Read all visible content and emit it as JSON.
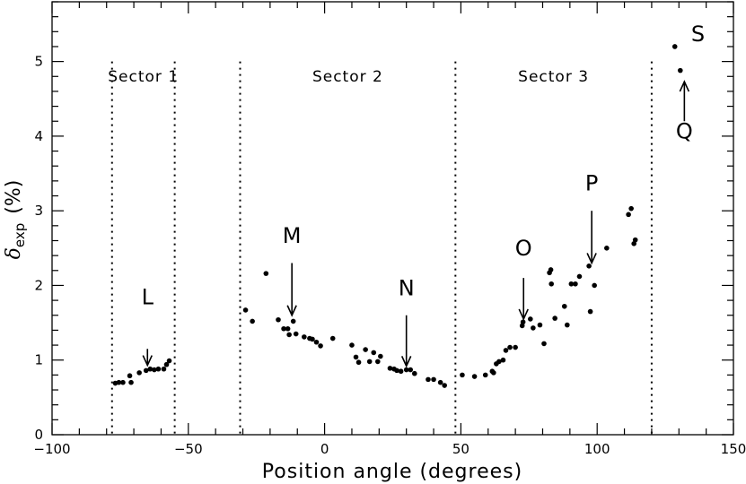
{
  "chart_data": {
    "type": "scatter",
    "xlabel": "Position angle (degrees)",
    "ylabel": "δ",
    "ylabel_sub": "exp",
    "ylabel_unit": "(%)",
    "xlim": [
      -100,
      150
    ],
    "ylim": [
      0,
      5.8
    ],
    "x_ticks": [
      -100,
      -50,
      0,
      50,
      100,
      150
    ],
    "x_tick_labels": [
      "−100",
      "−50",
      "0",
      "50",
      "100",
      "150"
    ],
    "y_ticks": [
      0,
      1,
      2,
      3,
      4,
      5
    ],
    "y_tick_labels": [
      "0",
      "1",
      "2",
      "3",
      "4",
      "5"
    ],
    "grid": false,
    "sectors": [
      {
        "label": "Sector 1",
        "from": -78,
        "to": -55
      },
      {
        "label": "Sector 2",
        "from": -31,
        "to": 48
      },
      {
        "label": "Sector 3",
        "from": 48,
        "to": 120
      }
    ],
    "sector_boundaries": [
      -78,
      -55,
      -31,
      48,
      120
    ],
    "annotations": [
      {
        "label": "L",
        "x": -65,
        "y_label": 1.75,
        "arrow_from": 1.15,
        "arrow_to": 0.93,
        "direction": "down"
      },
      {
        "label": "M",
        "x": -12,
        "y_label": 2.57,
        "arrow_from": 2.3,
        "arrow_to": 1.6,
        "direction": "down"
      },
      {
        "label": "N",
        "x": 30,
        "y_label": 1.87,
        "arrow_from": 1.6,
        "arrow_to": 0.92,
        "direction": "down"
      },
      {
        "label": "O",
        "x": 73,
        "y_label": 2.4,
        "arrow_from": 2.1,
        "arrow_to": 1.55,
        "direction": "down"
      },
      {
        "label": "P",
        "x": 98,
        "y_label": 3.27,
        "arrow_from": 3.0,
        "arrow_to": 2.3,
        "direction": "down"
      },
      {
        "label": "Q",
        "x": 132,
        "y_label": 3.97,
        "arrow_from": 4.2,
        "arrow_to": 4.73,
        "direction": "up"
      },
      {
        "label": "S",
        "x": 137,
        "y_label": 5.27,
        "direction": "none"
      }
    ],
    "series": [
      {
        "points": [
          [
            -76.8,
            0.69
          ],
          [
            -75.5,
            0.7
          ],
          [
            -74.0,
            0.7
          ],
          [
            -71.5,
            0.79
          ],
          [
            -71.0,
            0.7
          ],
          [
            -68.0,
            0.83
          ],
          [
            -65.5,
            0.86
          ],
          [
            -64.0,
            0.88
          ],
          [
            -62.5,
            0.87
          ],
          [
            -61.0,
            0.88
          ],
          [
            -59.0,
            0.88
          ],
          [
            -58.0,
            0.94
          ],
          [
            -57.0,
            0.99
          ],
          [
            -29.0,
            1.67
          ],
          [
            -26.5,
            1.52
          ],
          [
            -21.5,
            2.16
          ],
          [
            -17.0,
            1.54
          ],
          [
            -15.0,
            1.42
          ],
          [
            -13.5,
            1.42
          ],
          [
            -13.0,
            1.34
          ],
          [
            -11.5,
            1.52
          ],
          [
            -10.5,
            1.35
          ],
          [
            -7.5,
            1.31
          ],
          [
            -5.5,
            1.29
          ],
          [
            -4.5,
            1.28
          ],
          [
            -3.0,
            1.24
          ],
          [
            -1.5,
            1.19
          ],
          [
            3.0,
            1.29
          ],
          [
            10.0,
            1.2
          ],
          [
            11.5,
            1.04
          ],
          [
            12.5,
            0.97
          ],
          [
            15.0,
            1.14
          ],
          [
            16.5,
            0.98
          ],
          [
            18.0,
            1.1
          ],
          [
            19.5,
            0.98
          ],
          [
            20.5,
            1.05
          ],
          [
            24.0,
            0.89
          ],
          [
            25.5,
            0.88
          ],
          [
            26.5,
            0.86
          ],
          [
            28.0,
            0.85
          ],
          [
            30.0,
            0.87
          ],
          [
            31.5,
            0.87
          ],
          [
            33.0,
            0.82
          ],
          [
            38.0,
            0.74
          ],
          [
            40.0,
            0.74
          ],
          [
            42.5,
            0.7
          ],
          [
            44.0,
            0.66
          ],
          [
            50.5,
            0.8
          ],
          [
            55.0,
            0.78
          ],
          [
            59.0,
            0.8
          ],
          [
            61.5,
            0.85
          ],
          [
            62.0,
            0.83
          ],
          [
            63.0,
            0.95
          ],
          [
            64.0,
            0.98
          ],
          [
            65.5,
            1.0
          ],
          [
            66.5,
            1.13
          ],
          [
            68.0,
            1.17
          ],
          [
            70.0,
            1.17
          ],
          [
            72.5,
            1.46
          ],
          [
            72.8,
            1.51
          ],
          [
            75.5,
            1.55
          ],
          [
            76.5,
            1.43
          ],
          [
            79.0,
            1.47
          ],
          [
            80.5,
            1.22
          ],
          [
            82.5,
            2.17
          ],
          [
            83.0,
            2.21
          ],
          [
            83.2,
            2.02
          ],
          [
            84.5,
            1.56
          ],
          [
            88.0,
            1.72
          ],
          [
            89.0,
            1.47
          ],
          [
            90.5,
            2.02
          ],
          [
            92.0,
            2.02
          ],
          [
            93.5,
            2.12
          ],
          [
            97.0,
            2.26
          ],
          [
            97.5,
            1.65
          ],
          [
            99.0,
            2.0
          ],
          [
            103.5,
            2.5
          ],
          [
            111.5,
            2.95
          ],
          [
            112.5,
            3.03
          ],
          [
            113.5,
            2.56
          ],
          [
            114.0,
            2.61
          ],
          [
            128.5,
            5.2
          ],
          [
            130.5,
            4.88
          ]
        ]
      }
    ]
  }
}
